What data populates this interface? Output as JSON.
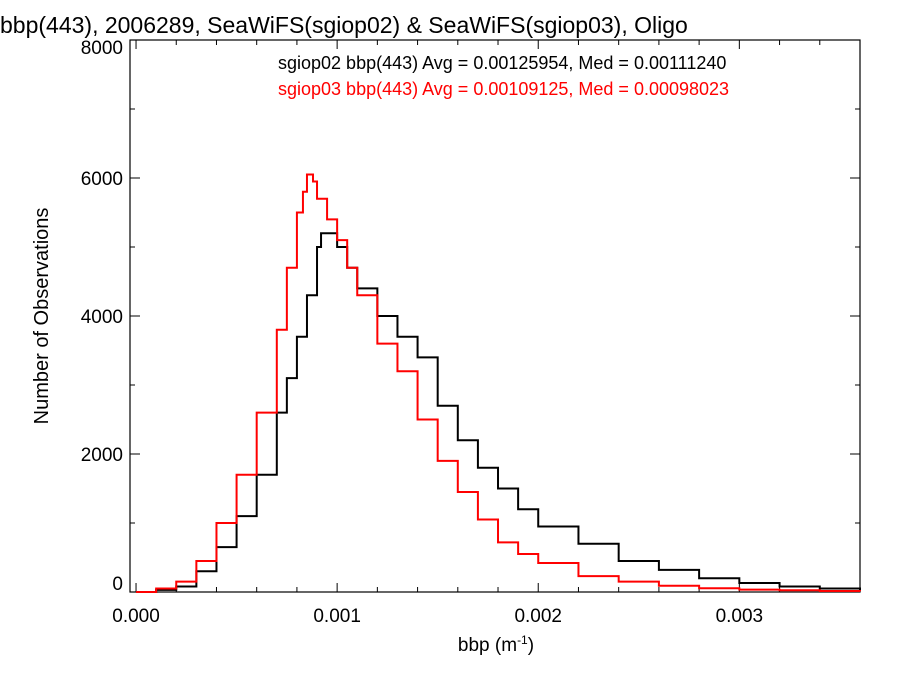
{
  "chart_data": {
    "type": "line",
    "title": "bbp(443), 2006289, SeaWiFS(sgiop02) & SeaWiFS(sgiop03), Oligo",
    "xlabel": "bbp (m",
    "xlabel_sup": "-1",
    "xlabel_suffix": ")",
    "ylabel": "Number of Observations",
    "xlim": [
      -3e-05,
      0.0036
    ],
    "ylim": [
      0,
      8000
    ],
    "x_ticks": [
      0.0,
      0.001,
      0.002,
      0.003
    ],
    "x_tick_labels": [
      "0.000",
      "0.001",
      "0.002",
      "0.003"
    ],
    "y_ticks": [
      0,
      2000,
      4000,
      6000,
      8000
    ],
    "y_tick_labels": [
      "0",
      "2000",
      "4000",
      "6000",
      "8000"
    ],
    "grid": false,
    "legend_position": "top-right",
    "series": [
      {
        "name": "sgiop02 bbp(443) Avg = 0.00125954, Med = 0.00111240",
        "color": "#000000",
        "points": [
          [
            0.0,
            0
          ],
          [
            0.0001,
            30
          ],
          [
            0.0002,
            80
          ],
          [
            0.0003,
            300
          ],
          [
            0.0004,
            650
          ],
          [
            0.0005,
            1100
          ],
          [
            0.0006,
            1700
          ],
          [
            0.0007,
            2600
          ],
          [
            0.00075,
            3100
          ],
          [
            0.0008,
            3700
          ],
          [
            0.00085,
            4300
          ],
          [
            0.0009,
            5000
          ],
          [
            0.00092,
            5200
          ],
          [
            0.00095,
            5200
          ],
          [
            0.001,
            5000
          ],
          [
            0.00105,
            4700
          ],
          [
            0.0011,
            4400
          ],
          [
            0.0012,
            4000
          ],
          [
            0.0013,
            3700
          ],
          [
            0.0014,
            3400
          ],
          [
            0.0015,
            2700
          ],
          [
            0.0016,
            2200
          ],
          [
            0.0017,
            1800
          ],
          [
            0.0018,
            1500
          ],
          [
            0.0019,
            1200
          ],
          [
            0.002,
            950
          ],
          [
            0.0022,
            700
          ],
          [
            0.0024,
            450
          ],
          [
            0.0026,
            320
          ],
          [
            0.0028,
            200
          ],
          [
            0.003,
            130
          ],
          [
            0.0032,
            80
          ],
          [
            0.0034,
            50
          ],
          [
            0.0036,
            25
          ]
        ]
      },
      {
        "name": "sgiop03 bbp(443) Avg = 0.00109125, Med = 0.00098023",
        "color": "#ff0000",
        "points": [
          [
            0.0,
            0
          ],
          [
            0.0001,
            50
          ],
          [
            0.0002,
            150
          ],
          [
            0.0003,
            450
          ],
          [
            0.0004,
            1000
          ],
          [
            0.0005,
            1700
          ],
          [
            0.0006,
            2600
          ],
          [
            0.0007,
            3800
          ],
          [
            0.00075,
            4700
          ],
          [
            0.0008,
            5500
          ],
          [
            0.00083,
            5800
          ],
          [
            0.00085,
            6050
          ],
          [
            0.00088,
            5950
          ],
          [
            0.0009,
            5700
          ],
          [
            0.00095,
            5400
          ],
          [
            0.001,
            5100
          ],
          [
            0.00105,
            4700
          ],
          [
            0.0011,
            4300
          ],
          [
            0.0012,
            3600
          ],
          [
            0.0013,
            3200
          ],
          [
            0.0014,
            2500
          ],
          [
            0.0015,
            1900
          ],
          [
            0.0016,
            1450
          ],
          [
            0.0017,
            1050
          ],
          [
            0.0018,
            720
          ],
          [
            0.0019,
            550
          ],
          [
            0.002,
            420
          ],
          [
            0.0022,
            230
          ],
          [
            0.0024,
            150
          ],
          [
            0.0026,
            90
          ],
          [
            0.0028,
            55
          ],
          [
            0.003,
            35
          ],
          [
            0.0032,
            25
          ],
          [
            0.0034,
            15
          ],
          [
            0.0036,
            10
          ]
        ]
      }
    ]
  }
}
